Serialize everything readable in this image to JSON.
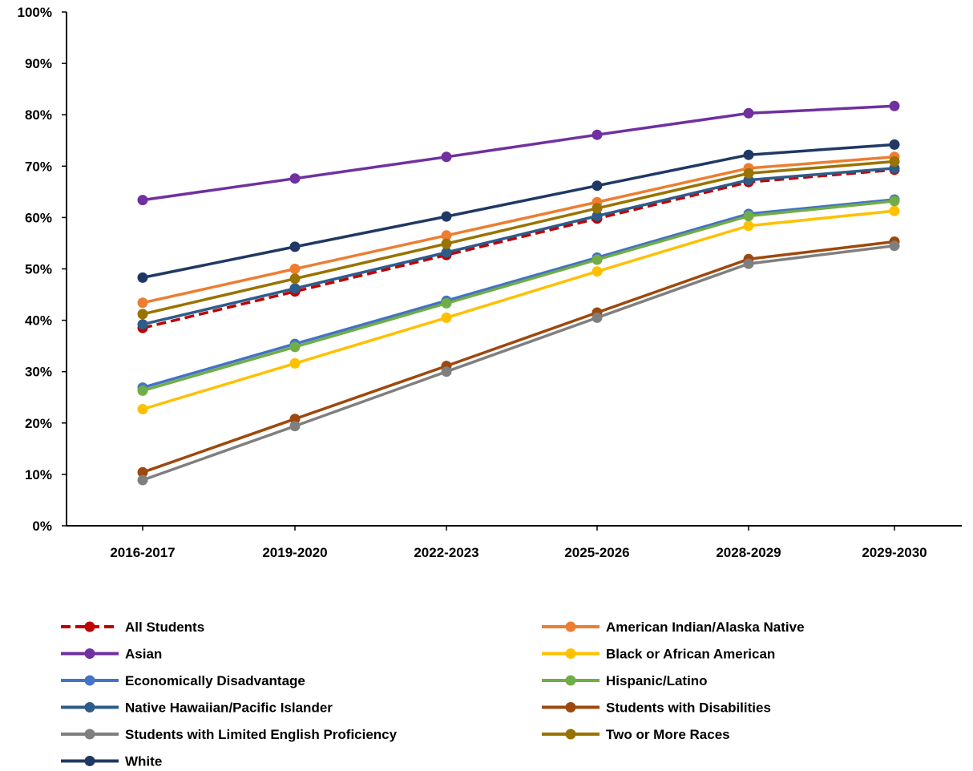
{
  "chart_data": {
    "type": "line",
    "title": "",
    "xlabel": "",
    "ylabel": "",
    "categories": [
      "2016-2017",
      "2019-2020",
      "2022-2023",
      "2025-2026",
      "2028-2029",
      "2029-2030"
    ],
    "ylim": [
      0,
      100
    ],
    "yticks": [
      "0%",
      "10%",
      "20%",
      "30%",
      "40%",
      "50%",
      "60%",
      "70%",
      "80%",
      "90%",
      "100%"
    ],
    "y_unit": "%",
    "grid": false,
    "legend_position": "bottom",
    "series": [
      {
        "name": "All Students",
        "color": "#C00000",
        "dashed": true,
        "values": [
          38.5,
          45.6,
          52.7,
          59.8,
          66.9,
          69.3
        ]
      },
      {
        "name": "American Indian/Alaska Native",
        "color": "#ED7D31",
        "dashed": false,
        "values": [
          43.4,
          50.0,
          56.5,
          63.0,
          69.6,
          71.8
        ]
      },
      {
        "name": "Asian",
        "color": "#7030A0",
        "dashed": false,
        "values": [
          63.4,
          67.6,
          71.8,
          76.1,
          80.3,
          81.7
        ]
      },
      {
        "name": "Black or African American",
        "color": "#FFC000",
        "dashed": false,
        "values": [
          22.7,
          31.6,
          40.5,
          49.5,
          58.4,
          61.3
        ]
      },
      {
        "name": "Economically Disadvantage",
        "color": "#4472C4",
        "dashed": false,
        "values": [
          26.9,
          35.4,
          43.8,
          52.2,
          60.7,
          63.5
        ]
      },
      {
        "name": "Hispanic/Latino",
        "color": "#70AD47",
        "dashed": false,
        "values": [
          26.3,
          34.8,
          43.3,
          51.8,
          60.3,
          63.2
        ]
      },
      {
        "name": "Native Hawaiian/Pacific Islander",
        "color": "#2E5C8A",
        "dashed": false,
        "values": [
          39.2,
          46.2,
          53.2,
          60.3,
          67.3,
          69.6
        ]
      },
      {
        "name": "Students with Disabilities",
        "color": "#9E480E",
        "dashed": false,
        "values": [
          10.4,
          20.8,
          31.1,
          41.5,
          51.9,
          55.3
        ]
      },
      {
        "name": "Students with Limited English Proficiency",
        "color": "#7F7F7F",
        "dashed": false,
        "values": [
          8.9,
          19.4,
          30.0,
          40.5,
          51.0,
          54.5
        ]
      },
      {
        "name": "Two or More Races",
        "color": "#997300",
        "dashed": false,
        "values": [
          41.2,
          48.1,
          54.9,
          61.8,
          68.6,
          70.9
        ]
      },
      {
        "name": "White",
        "color": "#203864",
        "dashed": false,
        "values": [
          48.3,
          54.3,
          60.2,
          66.2,
          72.2,
          74.2
        ]
      }
    ]
  }
}
